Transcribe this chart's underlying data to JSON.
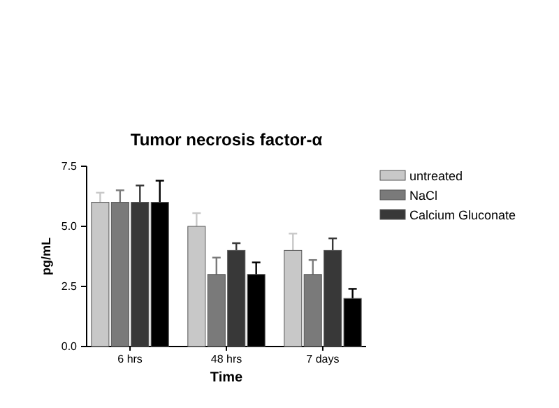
{
  "chart_data": {
    "type": "bar",
    "title": "Tumor necrosis factor-α",
    "xlabel": "Time",
    "ylabel": "pg/mL",
    "categories": [
      "6 hrs",
      "48 hrs",
      "7 days"
    ],
    "ylim": [
      0,
      7.5
    ],
    "yticks": [
      {
        "value": 0,
        "label": "0.0"
      },
      {
        "value": 2.5,
        "label": "2.5"
      },
      {
        "value": 5,
        "label": "5.0"
      },
      {
        "value": 7.5,
        "label": "7.5"
      }
    ],
    "legend": "right",
    "series": [
      {
        "name": "untreated",
        "color": "#c8c8c8",
        "values": [
          6,
          5,
          4
        ],
        "errors": [
          0.4,
          0.55,
          0.7
        ]
      },
      {
        "name": "NaCl",
        "color": "#7a7a7a",
        "values": [
          6,
          3,
          3
        ],
        "errors": [
          0.5,
          0.7,
          0.6
        ]
      },
      {
        "name": "Calcium Gluconate",
        "color": "#383838",
        "values": [
          6,
          4,
          4
        ],
        "errors": [
          0.7,
          0.3,
          0.5
        ]
      },
      {
        "color": "#000000",
        "values": [
          6,
          3,
          2
        ],
        "errors": [
          0.9,
          0.5,
          0.4
        ]
      }
    ]
  }
}
